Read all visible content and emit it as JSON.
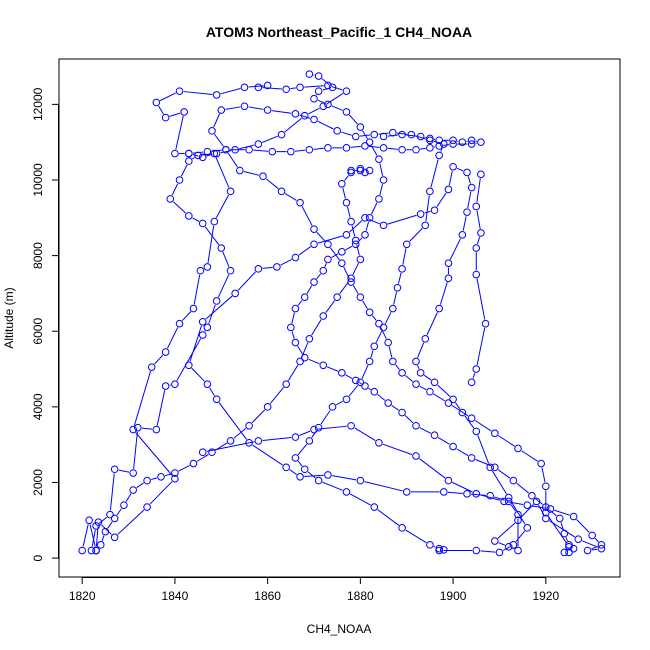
{
  "chart_data": {
    "type": "line",
    "title": "ATOM3 Northeast_Pacific_1 CH4_NOAA",
    "xlabel": "CH4_NOAA",
    "ylabel": "Altitude (m)",
    "xlim": [
      1815,
      1936
    ],
    "ylim": [
      -500,
      13200
    ],
    "xticks": [
      1820,
      1840,
      1860,
      1880,
      1900,
      1920
    ],
    "yticks": [
      0,
      2000,
      4000,
      6000,
      8000,
      10000,
      12000
    ],
    "grid": false,
    "color": "#0000ff",
    "series": [
      {
        "marker": "open-circle",
        "points": [
          [
            1820,
            200
          ],
          [
            1821.5,
            1000
          ],
          [
            1823,
            200
          ],
          [
            1823.5,
            950
          ],
          [
            1827,
            550
          ],
          [
            1834,
            1350
          ],
          [
            1840,
            2100
          ],
          [
            1831,
            3400
          ],
          [
            1835,
            5050
          ],
          [
            1838,
            5450
          ],
          [
            1841,
            6200
          ],
          [
            1844,
            6600
          ],
          [
            1845.5,
            7600
          ],
          [
            1847,
            7700
          ],
          [
            1848.5,
            8900
          ],
          [
            1852,
            9700
          ],
          [
            1848.5,
            10700
          ],
          [
            1846,
            10600
          ],
          [
            1843,
            10700
          ],
          [
            1840,
            10700
          ],
          [
            1842,
            11800
          ],
          [
            1838,
            11650
          ],
          [
            1836,
            12050
          ],
          [
            1841,
            12350
          ],
          [
            1849,
            12250
          ],
          [
            1855,
            12450
          ],
          [
            1860,
            12500
          ],
          [
            1858,
            12450
          ],
          [
            1864,
            12400
          ],
          [
            1867,
            12450
          ],
          [
            1873,
            12500
          ],
          [
            1877,
            12350
          ],
          [
            1872,
            11950
          ],
          [
            1868,
            11700
          ],
          [
            1863,
            11200
          ],
          [
            1858,
            10950
          ],
          [
            1853,
            10800
          ],
          [
            1849,
            10700
          ],
          [
            1845,
            10650
          ],
          [
            1843,
            10500
          ],
          [
            1841,
            10000
          ],
          [
            1839,
            9500
          ],
          [
            1843,
            9050
          ],
          [
            1846,
            8850
          ],
          [
            1850,
            8200
          ],
          [
            1852,
            7600
          ],
          [
            1849,
            6800
          ],
          [
            1847,
            6100
          ],
          [
            1846,
            5900
          ],
          [
            1840,
            4600
          ],
          [
            1838,
            4550
          ],
          [
            1836,
            3400
          ],
          [
            1832,
            3450
          ],
          [
            1831,
            2250
          ],
          [
            1827,
            2350
          ],
          [
            1826,
            1150
          ],
          [
            1823,
            850
          ],
          [
            1822,
            200
          ]
        ]
      },
      {
        "marker": "open-circle",
        "points": [
          [
            1846,
            2800
          ],
          [
            1858,
            3100
          ],
          [
            1866,
            3200
          ],
          [
            1870,
            3400
          ],
          [
            1878,
            3500
          ],
          [
            1884,
            3050
          ],
          [
            1892,
            2700
          ],
          [
            1899,
            2050
          ],
          [
            1905,
            1700
          ],
          [
            1911,
            1500
          ],
          [
            1916,
            1400
          ],
          [
            1921,
            1300
          ],
          [
            1926,
            1100
          ],
          [
            1930,
            600
          ],
          [
            1932,
            350
          ],
          [
            1929,
            200
          ],
          [
            1932,
            250
          ],
          [
            1927,
            500
          ],
          [
            1920,
            1050
          ],
          [
            1918,
            1500
          ],
          [
            1914,
            1000
          ],
          [
            1909,
            450
          ],
          [
            1912,
            300
          ],
          [
            1914,
            200
          ],
          [
            1914,
            1150
          ],
          [
            1912,
            1500
          ],
          [
            1908,
            1650
          ],
          [
            1903,
            1700
          ],
          [
            1898,
            1750
          ],
          [
            1890,
            1750
          ],
          [
            1880,
            2050
          ],
          [
            1873,
            2200
          ],
          [
            1867,
            2150
          ],
          [
            1864,
            2400
          ],
          [
            1856,
            3050
          ],
          [
            1849,
            4200
          ],
          [
            1847,
            4600
          ],
          [
            1843,
            5100
          ],
          [
            1846,
            6250
          ],
          [
            1853,
            7000
          ],
          [
            1858,
            7650
          ],
          [
            1862,
            7700
          ],
          [
            1866,
            7950
          ],
          [
            1870,
            8300
          ],
          [
            1877,
            8550
          ],
          [
            1881,
            9000
          ],
          [
            1885,
            8800
          ],
          [
            1893,
            9100
          ],
          [
            1896,
            9200
          ],
          [
            1899,
            9750
          ],
          [
            1900,
            10350
          ],
          [
            1903,
            10200
          ],
          [
            1904,
            9800
          ],
          [
            1903,
            9150
          ],
          [
            1902,
            8550
          ],
          [
            1899,
            7800
          ],
          [
            1899,
            7400
          ],
          [
            1897,
            6600
          ],
          [
            1894,
            5800
          ],
          [
            1892,
            5200
          ],
          [
            1893,
            4900
          ],
          [
            1896,
            4650
          ],
          [
            1900,
            4200
          ],
          [
            1902,
            3850
          ],
          [
            1905,
            3350
          ],
          [
            1908,
            2400
          ],
          [
            1912,
            1600
          ],
          [
            1916,
            800
          ],
          [
            1913,
            350
          ],
          [
            1910,
            150
          ],
          [
            1905,
            200
          ],
          [
            1897,
            200
          ],
          [
            1898,
            220
          ],
          [
            1897,
            250
          ],
          [
            1895,
            350
          ],
          [
            1889,
            800
          ],
          [
            1883,
            1350
          ],
          [
            1877,
            1750
          ],
          [
            1871,
            2050
          ],
          [
            1868,
            2350
          ],
          [
            1866,
            2650
          ],
          [
            1869,
            3100
          ],
          [
            1871,
            3450
          ],
          [
            1874,
            4000
          ],
          [
            1877,
            4200
          ],
          [
            1880,
            4650
          ],
          [
            1882,
            5200
          ],
          [
            1883,
            5600
          ],
          [
            1885,
            6100
          ],
          [
            1887,
            6600
          ],
          [
            1888,
            7150
          ],
          [
            1889,
            7650
          ],
          [
            1890,
            8300
          ],
          [
            1894,
            8800
          ],
          [
            1895,
            9700
          ],
          [
            1897,
            10650
          ],
          [
            1898,
            10950
          ],
          [
            1895,
            11050
          ],
          [
            1891,
            11200
          ],
          [
            1887,
            11250
          ],
          [
            1883,
            11200
          ],
          [
            1879,
            11150
          ],
          [
            1875,
            11300
          ],
          [
            1870,
            11600
          ],
          [
            1866,
            11750
          ],
          [
            1860,
            11850
          ],
          [
            1855,
            11950
          ],
          [
            1850,
            11850
          ],
          [
            1848,
            11300
          ],
          [
            1851,
            10800
          ],
          [
            1854,
            10250
          ],
          [
            1859,
            10100
          ],
          [
            1863,
            9700
          ],
          [
            1867,
            9400
          ],
          [
            1870,
            8700
          ],
          [
            1873,
            8300
          ],
          [
            1876,
            7800
          ],
          [
            1878,
            7300
          ],
          [
            1880,
            6900
          ],
          [
            1882,
            6500
          ],
          [
            1884,
            6200
          ],
          [
            1886,
            5700
          ],
          [
            1887,
            5200
          ],
          [
            1889,
            4900
          ],
          [
            1892,
            4600
          ],
          [
            1895,
            4400
          ],
          [
            1899,
            4100
          ],
          [
            1904,
            3700
          ],
          [
            1909,
            3300
          ],
          [
            1914,
            2900
          ],
          [
            1919,
            2500
          ],
          [
            1920,
            1900
          ],
          [
            1920,
            1200
          ],
          [
            1925,
            300
          ],
          [
            1926,
            250
          ],
          [
            1925,
            150
          ]
        ]
      },
      {
        "marker": "open-circle",
        "points": [
          [
            1869,
            12800
          ],
          [
            1871,
            12750
          ],
          [
            1874,
            12450
          ],
          [
            1871,
            12350
          ],
          [
            1870,
            12150
          ],
          [
            1873,
            12000
          ],
          [
            1877,
            11800
          ],
          [
            1880,
            11400
          ],
          [
            1882,
            11000
          ],
          [
            1884,
            10550
          ],
          [
            1885,
            10000
          ],
          [
            1884,
            9500
          ],
          [
            1882,
            9000
          ],
          [
            1881,
            8550
          ],
          [
            1879,
            8300
          ],
          [
            1876,
            8100
          ],
          [
            1873,
            7900
          ],
          [
            1872,
            7600
          ],
          [
            1870,
            7300
          ],
          [
            1868,
            6900
          ],
          [
            1866,
            6600
          ],
          [
            1865,
            6100
          ],
          [
            1866,
            5700
          ],
          [
            1868,
            5300
          ],
          [
            1872,
            5100
          ],
          [
            1876,
            4900
          ],
          [
            1879,
            4700
          ],
          [
            1881,
            4550
          ],
          [
            1883,
            4400
          ],
          [
            1886,
            4100
          ],
          [
            1889,
            3850
          ],
          [
            1892,
            3500
          ],
          [
            1896,
            3250
          ],
          [
            1900,
            2950
          ],
          [
            1904,
            2650
          ],
          [
            1909,
            2400
          ],
          [
            1913,
            2050
          ],
          [
            1917,
            1650
          ],
          [
            1920,
            1350
          ],
          [
            1923,
            1050
          ],
          [
            1924,
            650
          ],
          [
            1925,
            350
          ],
          [
            1924,
            150
          ]
        ]
      },
      {
        "marker": "open-circle",
        "points": [
          [
            1885,
            11150
          ],
          [
            1889,
            11200
          ],
          [
            1893,
            11150
          ],
          [
            1895,
            11100
          ],
          [
            1897,
            11050
          ],
          [
            1900,
            11050
          ],
          [
            1902,
            11000
          ],
          [
            1904,
            11050
          ],
          [
            1906,
            11000
          ],
          [
            1904,
            10950
          ],
          [
            1900,
            10950
          ],
          [
            1897,
            10900
          ],
          [
            1895,
            10850
          ],
          [
            1892,
            10800
          ],
          [
            1889,
            10800
          ],
          [
            1885,
            10850
          ],
          [
            1881,
            10900
          ],
          [
            1877,
            10850
          ],
          [
            1873,
            10850
          ],
          [
            1869,
            10800
          ],
          [
            1865,
            10750
          ],
          [
            1861,
            10750
          ],
          [
            1856,
            10800
          ],
          [
            1851,
            10800
          ],
          [
            1847,
            10750
          ],
          [
            1843,
            10700
          ]
        ]
      },
      {
        "marker": "open-circle",
        "points": [
          [
            1906,
            10150
          ],
          [
            1905,
            9300
          ],
          [
            1906,
            8600
          ],
          [
            1905,
            8200
          ],
          [
            1905,
            7500
          ],
          [
            1907,
            6200
          ],
          [
            1905,
            5000
          ],
          [
            1904,
            4650
          ]
        ]
      },
      {
        "marker": "open-circle",
        "points": [
          [
            1878,
            10250
          ],
          [
            1880,
            10250
          ],
          [
            1881,
            10200
          ],
          [
            1882,
            10250
          ],
          [
            1880,
            10300
          ],
          [
            1878,
            10200
          ],
          [
            1876,
            9900
          ],
          [
            1877,
            9400
          ],
          [
            1878,
            8900
          ],
          [
            1879,
            8400
          ],
          [
            1880,
            7900
          ],
          [
            1878,
            7400
          ],
          [
            1875,
            6900
          ],
          [
            1872,
            6400
          ],
          [
            1869,
            5800
          ],
          [
            1867,
            5200
          ],
          [
            1864,
            4600
          ],
          [
            1860,
            4000
          ],
          [
            1856,
            3500
          ],
          [
            1852,
            3100
          ],
          [
            1848,
            2800
          ],
          [
            1844,
            2500
          ],
          [
            1840,
            2250
          ],
          [
            1837,
            2150
          ],
          [
            1834,
            2050
          ],
          [
            1831,
            1800
          ],
          [
            1829,
            1400
          ],
          [
            1827,
            1050
          ],
          [
            1825,
            700
          ],
          [
            1824,
            350
          ],
          [
            1823,
            200
          ]
        ]
      }
    ]
  }
}
